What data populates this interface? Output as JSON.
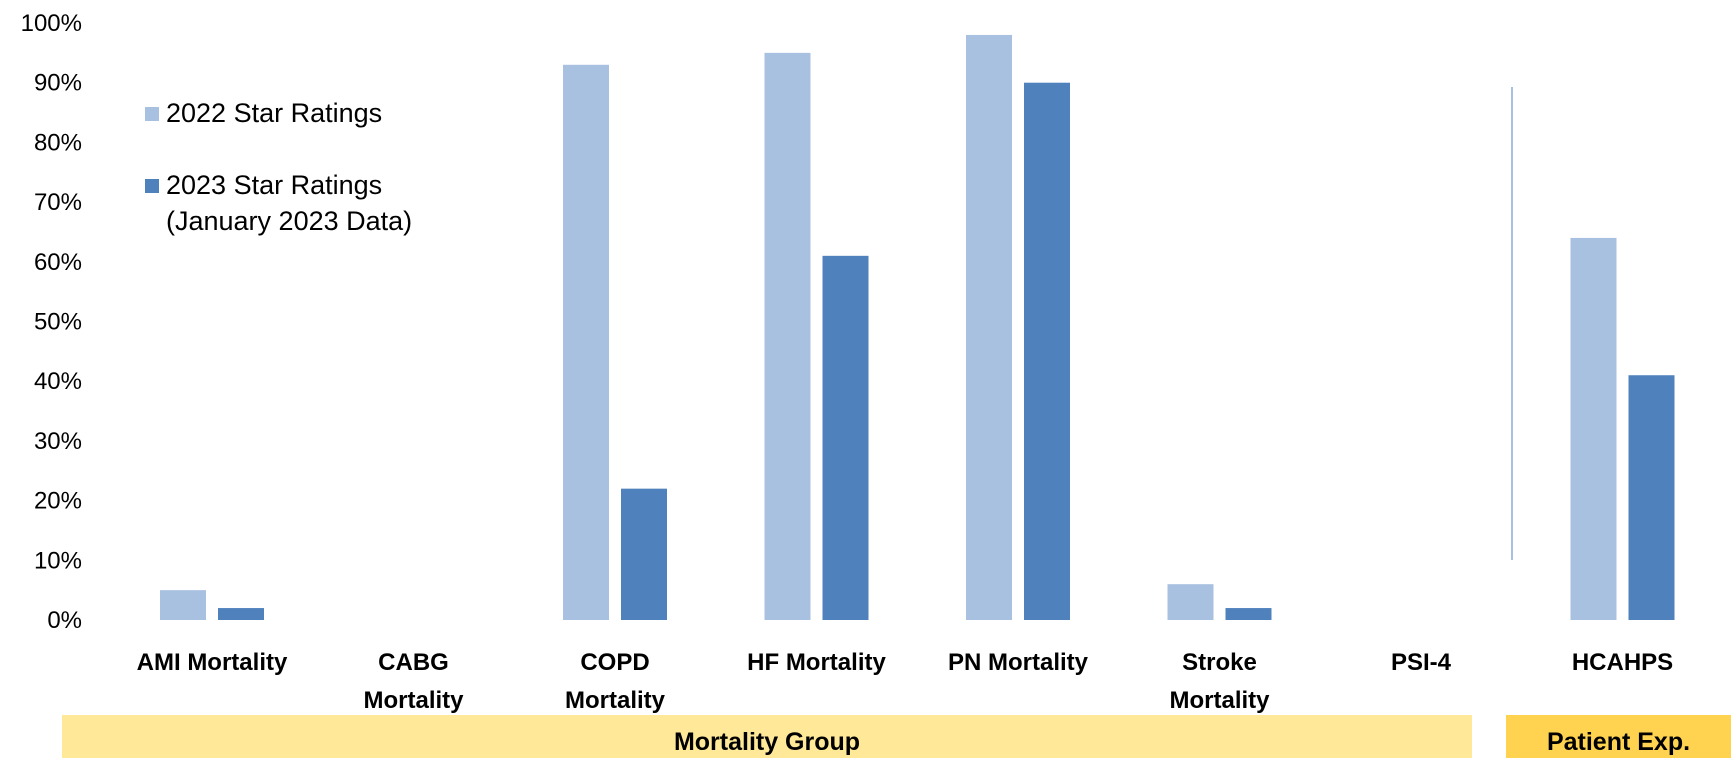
{
  "chart_data": {
    "type": "bar",
    "title": "",
    "categories": [
      "AMI Mortality",
      "CABG Mortality",
      "COPD Mortality",
      "HF Mortality",
      "PN Mortality",
      "Stroke Mortality",
      "PSI-4",
      "HCAHPS"
    ],
    "category_lines": [
      [
        "AMI Mortality"
      ],
      [
        "CABG",
        "Mortality"
      ],
      [
        "COPD",
        "Mortality"
      ],
      [
        "HF Mortality"
      ],
      [
        "PN Mortality"
      ],
      [
        "Stroke",
        "Mortality"
      ],
      [
        "PSI-4"
      ],
      [
        "HCAHPS"
      ]
    ],
    "series": [
      {
        "name": "2022 Star Ratings",
        "color": "#a9c1e0",
        "values": [
          5,
          null,
          93,
          95,
          98,
          6,
          null,
          64
        ]
      },
      {
        "name": "2023 Star Ratings (January 2023 Data)",
        "name_lines": [
          "2023 Star Ratings",
          "(January 2023 Data)"
        ],
        "color": "#4f81bd",
        "values": [
          2,
          null,
          22,
          61,
          90,
          2,
          null,
          41
        ]
      }
    ],
    "ylim": [
      0,
      100
    ],
    "yticks": [
      "0%",
      "10%",
      "20%",
      "30%",
      "40%",
      "50%",
      "60%",
      "70%",
      "80%",
      "90%",
      "100%"
    ],
    "grid": false,
    "legend": "top-left",
    "groups": [
      {
        "label": "Mortality Group",
        "color": "#ffe898",
        "categories": [
          0,
          6
        ]
      },
      {
        "label": "Patient Exp.",
        "color": "#ffd34f",
        "categories": [
          7,
          7
        ]
      }
    ]
  }
}
